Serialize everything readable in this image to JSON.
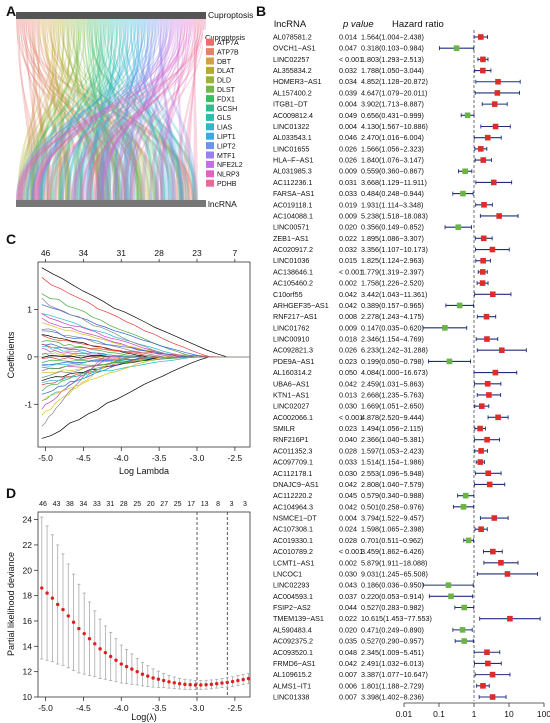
{
  "panels": {
    "A": {
      "letter": "A",
      "top_label": "Cuproptosis",
      "bottom_label": "lncRNA",
      "legend_title": "Cuproptosis",
      "genes": [
        {
          "name": "ATP7A",
          "color": "#e46f6b"
        },
        {
          "name": "ATP7B",
          "color": "#e08468"
        },
        {
          "name": "DBT",
          "color": "#d3a048"
        },
        {
          "name": "DLAT",
          "color": "#b8a830"
        },
        {
          "name": "DLD",
          "color": "#9bb33a"
        },
        {
          "name": "DLST",
          "color": "#6fbb45"
        },
        {
          "name": "FDX1",
          "color": "#3fbb62"
        },
        {
          "name": "GCSH",
          "color": "#2ebd8f"
        },
        {
          "name": "GLS",
          "color": "#2bbdb0"
        },
        {
          "name": "LIAS",
          "color": "#2db8cc"
        },
        {
          "name": "LIPT1",
          "color": "#3aa8e0"
        },
        {
          "name": "LIPT2",
          "color": "#6b94ea"
        },
        {
          "name": "MTF1",
          "color": "#9a80ea"
        },
        {
          "name": "NFE2L2",
          "color": "#c46fe0"
        },
        {
          "name": "NLRP3",
          "color": "#e063c4"
        },
        {
          "name": "PDHB",
          "color": "#e86a98"
        }
      ]
    },
    "B": {
      "letter": "B",
      "header": {
        "name": "lncRNA",
        "p": "p value",
        "hr": "Hazard ratio"
      },
      "xaxis_ticks": [
        "0.01",
        "0.1",
        "1",
        "10",
        "100"
      ]
    },
    "C": {
      "letter": "C",
      "ylabel": "Coefficients",
      "xlabel": "Log Lambda",
      "top_ticks": [
        "46",
        "34",
        "31",
        "28",
        "23",
        "7"
      ],
      "x_ticks": [
        "-5.0",
        "-4.5",
        "-4.0",
        "-3.5",
        "-3.0",
        "-2.5"
      ],
      "y_ticks": [
        "-1",
        "0",
        "1"
      ]
    },
    "D": {
      "letter": "D",
      "ylabel": "Partial likelihood deviance",
      "xlabel": "Log(λ)",
      "top_ticks": [
        "46",
        "43",
        "38",
        "34",
        "33",
        "31",
        "28",
        "25",
        "20",
        "27",
        "25",
        "17",
        "13",
        "8",
        "3",
        "3"
      ],
      "x_ticks": [
        "-5.0",
        "-4.5",
        "-4.0",
        "-3.5",
        "-3.0",
        "-2.5"
      ],
      "y_ticks": [
        "10",
        "12",
        "14",
        "16",
        "18",
        "20",
        "22",
        "24"
      ]
    }
  },
  "chart_data": [
    {
      "panel": "B",
      "type": "scatter",
      "title": "",
      "xlabel": "",
      "xscale": "log",
      "xlim": [
        0.01,
        100
      ],
      "reference_line": 1,
      "rows": [
        {
          "name": "AL078581.2",
          "p": "0.014",
          "hr": "1.564(1.004−2.438)",
          "est": 1.564,
          "lo": 1.004,
          "hi": 2.438
        },
        {
          "name": "OVCH1−AS1",
          "p": "0.047",
          "hr": "0.318(0.103−0.984)",
          "est": 0.318,
          "lo": 0.103,
          "hi": 0.984
        },
        {
          "name": "LINC02257",
          "p": "< 0.001",
          "hr": "1.803(1.293−2.513)",
          "est": 1.803,
          "lo": 1.293,
          "hi": 2.513
        },
        {
          "name": "AL355834.2",
          "p": "0.032",
          "hr": "1.788(1.050−3.044)",
          "est": 1.788,
          "lo": 1.05,
          "hi": 3.044
        },
        {
          "name": "HOMER3−AS1",
          "p": "0.034",
          "hr": "4.852(1.128−20.872)",
          "est": 4.852,
          "lo": 1.128,
          "hi": 20.872
        },
        {
          "name": "AL157400.2",
          "p": "0.039",
          "hr": "4.647(1.079−20.011)",
          "est": 4.647,
          "lo": 1.079,
          "hi": 20.011
        },
        {
          "name": "ITGB1−DT",
          "p": "0.004",
          "hr": "3.902(1.713−8.887)",
          "est": 3.902,
          "lo": 1.713,
          "hi": 8.887
        },
        {
          "name": "AC009812.4",
          "p": "0.049",
          "hr": "0.656(0.431−0.999)",
          "est": 0.656,
          "lo": 0.431,
          "hi": 0.999
        },
        {
          "name": "LINC01322",
          "p": "0.004",
          "hr": "4.130(1.567−10.886)",
          "est": 4.13,
          "lo": 1.567,
          "hi": 10.886
        },
        {
          "name": "AL033543.1",
          "p": "0.046",
          "hr": "2.470(1.016−6.004)",
          "est": 2.47,
          "lo": 1.016,
          "hi": 6.004
        },
        {
          "name": "LINC01655",
          "p": "0.026",
          "hr": "1.566(1.056−2.323)",
          "est": 1.566,
          "lo": 1.056,
          "hi": 2.323
        },
        {
          "name": "HLA−F−AS1",
          "p": "0.026",
          "hr": "1.840(1.076−3.147)",
          "est": 1.84,
          "lo": 1.076,
          "hi": 3.147
        },
        {
          "name": "AL031985.3",
          "p": "0.009",
          "hr": "0.559(0.360−0.867)",
          "est": 0.559,
          "lo": 0.36,
          "hi": 0.867
        },
        {
          "name": "AC112236.1",
          "p": "0.031",
          "hr": "3.668(1.129−11.911)",
          "est": 3.668,
          "lo": 1.129,
          "hi": 11.911
        },
        {
          "name": "FARSA−AS1",
          "p": "0.033",
          "hr": "0.484(0.248−0.944)",
          "est": 0.484,
          "lo": 0.248,
          "hi": 0.944
        },
        {
          "name": "AC019118.1",
          "p": "0.019",
          "hr": "1.931(1.114−3.348)",
          "est": 1.931,
          "lo": 1.114,
          "hi": 3.348
        },
        {
          "name": "AC104088.1",
          "p": "0.009",
          "hr": "5.238(1.518−18.083)",
          "est": 5.238,
          "lo": 1.518,
          "hi": 18.083
        },
        {
          "name": "LINC00571",
          "p": "0.020",
          "hr": "0.356(0.149−0.852)",
          "est": 0.356,
          "lo": 0.149,
          "hi": 0.852
        },
        {
          "name": "ZEB1−AS1",
          "p": "0.022",
          "hr": "1.895(1.086−3.307)",
          "est": 1.895,
          "lo": 1.086,
          "hi": 3.307
        },
        {
          "name": "AC020917.2",
          "p": "0.032",
          "hr": "3.356(1.107−10.173)",
          "est": 3.356,
          "lo": 1.107,
          "hi": 10.173
        },
        {
          "name": "LINC01036",
          "p": "0.015",
          "hr": "1.825(1.124−2.963)",
          "est": 1.825,
          "lo": 1.124,
          "hi": 2.963
        },
        {
          "name": "AC138646.1",
          "p": "< 0.001",
          "hr": "1.779(1.319−2.397)",
          "est": 1.779,
          "lo": 1.319,
          "hi": 2.397
        },
        {
          "name": "AC105460.2",
          "p": "0.002",
          "hr": "1.758(1.226−2.520)",
          "est": 1.758,
          "lo": 1.226,
          "hi": 2.52
        },
        {
          "name": "C10orf55",
          "p": "0.042",
          "hr": "3.442(1.043−11.361)",
          "est": 3.442,
          "lo": 1.043,
          "hi": 11.361
        },
        {
          "name": "ARHGEF35−AS1",
          "p": "0.042",
          "hr": "0.389(0.157−0.965)",
          "est": 0.389,
          "lo": 0.157,
          "hi": 0.965
        },
        {
          "name": "RNF217−AS1",
          "p": "0.008",
          "hr": "2.278(1.243−4.175)",
          "est": 2.278,
          "lo": 1.243,
          "hi": 4.175
        },
        {
          "name": "LINC01762",
          "p": "0.009",
          "hr": "0.147(0.035−0.620)",
          "est": 0.147,
          "lo": 0.035,
          "hi": 0.62
        },
        {
          "name": "LINC00910",
          "p": "0.018",
          "hr": "2.346(1.154−4.769)",
          "est": 2.346,
          "lo": 1.154,
          "hi": 4.769
        },
        {
          "name": "AC092821.3",
          "p": "0.026",
          "hr": "6.233(1.242−31.288)",
          "est": 6.233,
          "lo": 1.242,
          "hi": 31.288
        },
        {
          "name": "PDE9A−AS1",
          "p": "0.023",
          "hr": "0.199(0.050−0.798)",
          "est": 0.199,
          "lo": 0.05,
          "hi": 0.798
        },
        {
          "name": "AL160314.2",
          "p": "0.050",
          "hr": "4.084(1.000−16.673)",
          "est": 4.084,
          "lo": 1.0,
          "hi": 16.673
        },
        {
          "name": "UBA6−AS1",
          "p": "0.042",
          "hr": "2.459(1.031−5.863)",
          "est": 2.459,
          "lo": 1.031,
          "hi": 5.863
        },
        {
          "name": "KTN1−AS1",
          "p": "0.013",
          "hr": "2.668(1.235−5.763)",
          "est": 2.668,
          "lo": 1.235,
          "hi": 5.763
        },
        {
          "name": "LINC02027",
          "p": "0.030",
          "hr": "1.669(1.051−2.650)",
          "est": 1.669,
          "lo": 1.051,
          "hi": 2.65
        },
        {
          "name": "AC002066.1",
          "p": "< 0.001",
          "hr": "4.878(2.520−9.444)",
          "est": 4.878,
          "lo": 2.52,
          "hi": 9.444
        },
        {
          "name": "SMILR",
          "p": "0.023",
          "hr": "1.494(1.056−2.115)",
          "est": 1.494,
          "lo": 1.056,
          "hi": 2.115
        },
        {
          "name": "RNF216P1",
          "p": "0.040",
          "hr": "2.366(1.040−5.381)",
          "est": 2.366,
          "lo": 1.04,
          "hi": 5.381
        },
        {
          "name": "AC011352.3",
          "p": "0.028",
          "hr": "1.597(1.053−2.423)",
          "est": 1.597,
          "lo": 1.053,
          "hi": 2.423
        },
        {
          "name": "AC097709.1",
          "p": "0.033",
          "hr": "1.514(1.154−1.986)",
          "est": 1.514,
          "lo": 1.154,
          "hi": 1.986
        },
        {
          "name": "AC112178.1",
          "p": "0.030",
          "hr": "2.553(1.096−5.948)",
          "est": 2.553,
          "lo": 1.096,
          "hi": 5.948
        },
        {
          "name": "DNAJC9−AS1",
          "p": "0.042",
          "hr": "2.808(1.040−7.579)",
          "est": 2.808,
          "lo": 1.04,
          "hi": 7.579
        },
        {
          "name": "AC112220.2",
          "p": "0.045",
          "hr": "0.579(0.340−0.988)",
          "est": 0.579,
          "lo": 0.34,
          "hi": 0.988
        },
        {
          "name": "AC104964.3",
          "p": "0.042",
          "hr": "0.501(0.258−0.976)",
          "est": 0.501,
          "lo": 0.258,
          "hi": 0.976
        },
        {
          "name": "NSMCE1−DT",
          "p": "0.004",
          "hr": "3.794(1.522−9.457)",
          "est": 3.794,
          "lo": 1.522,
          "hi": 9.457
        },
        {
          "name": "AC107308.1",
          "p": "0.024",
          "hr": "1.598(1.065−2.398)",
          "est": 1.598,
          "lo": 1.065,
          "hi": 2.398
        },
        {
          "name": "AC019330.1",
          "p": "0.028",
          "hr": "0.701(0.511−0.962)",
          "est": 0.701,
          "lo": 0.511,
          "hi": 0.962
        },
        {
          "name": "AC010789.2",
          "p": "< 0.001",
          "hr": "3.459(1.862−6.426)",
          "est": 3.459,
          "lo": 1.862,
          "hi": 6.426
        },
        {
          "name": "LCMT1−AS1",
          "p": "0.002",
          "hr": "5.879(1.911−18.088)",
          "est": 5.879,
          "lo": 1.911,
          "hi": 18.088
        },
        {
          "name": "LNCOC1",
          "p": "0.030",
          "hr": "9.031(1.245−65.508)",
          "est": 9.031,
          "lo": 1.245,
          "hi": 65.508
        },
        {
          "name": "LINC02293",
          "p": "0.043",
          "hr": "0.186(0.036−0.950)",
          "est": 0.186,
          "lo": 0.036,
          "hi": 0.95
        },
        {
          "name": "AC004593.1",
          "p": "0.037",
          "hr": "0.220(0.053−0.914)",
          "est": 0.22,
          "lo": 0.053,
          "hi": 0.914
        },
        {
          "name": "FSIP2−AS2",
          "p": "0.044",
          "hr": "0.527(0.283−0.982)",
          "est": 0.527,
          "lo": 0.283,
          "hi": 0.982
        },
        {
          "name": "TMEM139−AS1",
          "p": "0.022",
          "hr": "10.615(1.453−77.553)",
          "est": 10.615,
          "lo": 1.453,
          "hi": 77.553
        },
        {
          "name": "AL590483.4",
          "p": "0.020",
          "hr": "0.471(0.249−0.890)",
          "est": 0.471,
          "lo": 0.249,
          "hi": 0.89
        },
        {
          "name": "AC092375.2",
          "p": "0.035",
          "hr": "0.527(0.290−0.957)",
          "est": 0.527,
          "lo": 0.29,
          "hi": 0.957
        },
        {
          "name": "AC093520.1",
          "p": "0.048",
          "hr": "2.345(1.009−5.451)",
          "est": 2.345,
          "lo": 1.009,
          "hi": 5.451
        },
        {
          "name": "FRMD6−AS1",
          "p": "0.042",
          "hr": "2.491(1.032−6.013)",
          "est": 2.491,
          "lo": 1.032,
          "hi": 6.013
        },
        {
          "name": "AL109615.2",
          "p": "0.007",
          "hr": "3.387(1.077−10.647)",
          "est": 3.387,
          "lo": 1.077,
          "hi": 10.647
        },
        {
          "name": "ALMS1−IT1",
          "p": "0.006",
          "hr": "1.801(1.188−2.729)",
          "est": 1.801,
          "lo": 1.188,
          "hi": 2.729
        },
        {
          "name": "LINC01338",
          "p": "0.007",
          "hr": "3.398(1.402−8.236)",
          "est": 3.398,
          "lo": 1.402,
          "hi": 8.236
        }
      ]
    },
    {
      "panel": "D",
      "type": "scatter",
      "title": "",
      "xlabel": "Log(λ)",
      "ylabel": "Partial likelihood deviance",
      "xlim": [
        -5.1,
        -2.3
      ],
      "ylim": [
        10,
        24.6
      ],
      "vlines": [
        -3.0,
        -2.6
      ],
      "x": [
        -5.05,
        -4.98,
        -4.91,
        -4.84,
        -4.77,
        -4.7,
        -4.63,
        -4.56,
        -4.49,
        -4.42,
        -4.35,
        -4.28,
        -4.21,
        -4.14,
        -4.07,
        -4.0,
        -3.93,
        -3.86,
        -3.79,
        -3.72,
        -3.65,
        -3.58,
        -3.51,
        -3.44,
        -3.37,
        -3.3,
        -3.23,
        -3.16,
        -3.09,
        -3.02,
        -2.95,
        -2.88,
        -2.81,
        -2.74,
        -2.67,
        -2.6,
        -2.53,
        -2.46,
        -2.39,
        -2.32
      ],
      "y": [
        18.6,
        18.2,
        17.8,
        17.3,
        16.9,
        16.4,
        15.9,
        15.4,
        15.0,
        14.6,
        14.2,
        13.8,
        13.5,
        13.2,
        12.9,
        12.6,
        12.4,
        12.2,
        12.0,
        11.8,
        11.65,
        11.5,
        11.4,
        11.3,
        11.2,
        11.12,
        11.05,
        11.0,
        10.97,
        10.95,
        10.95,
        10.97,
        11.0,
        11.05,
        11.1,
        11.15,
        11.22,
        11.3,
        11.38,
        11.45
      ],
      "err": [
        5.6,
        5.3,
        5.0,
        4.7,
        4.4,
        4.1,
        3.8,
        3.5,
        3.2,
        2.9,
        2.6,
        2.35,
        2.1,
        1.9,
        1.7,
        1.5,
        1.35,
        1.2,
        1.05,
        0.92,
        0.82,
        0.72,
        0.64,
        0.56,
        0.5,
        0.46,
        0.42,
        0.4,
        0.38,
        0.36,
        0.35,
        0.35,
        0.35,
        0.35,
        0.36,
        0.37,
        0.38,
        0.39,
        0.4,
        0.41
      ]
    }
  ]
}
